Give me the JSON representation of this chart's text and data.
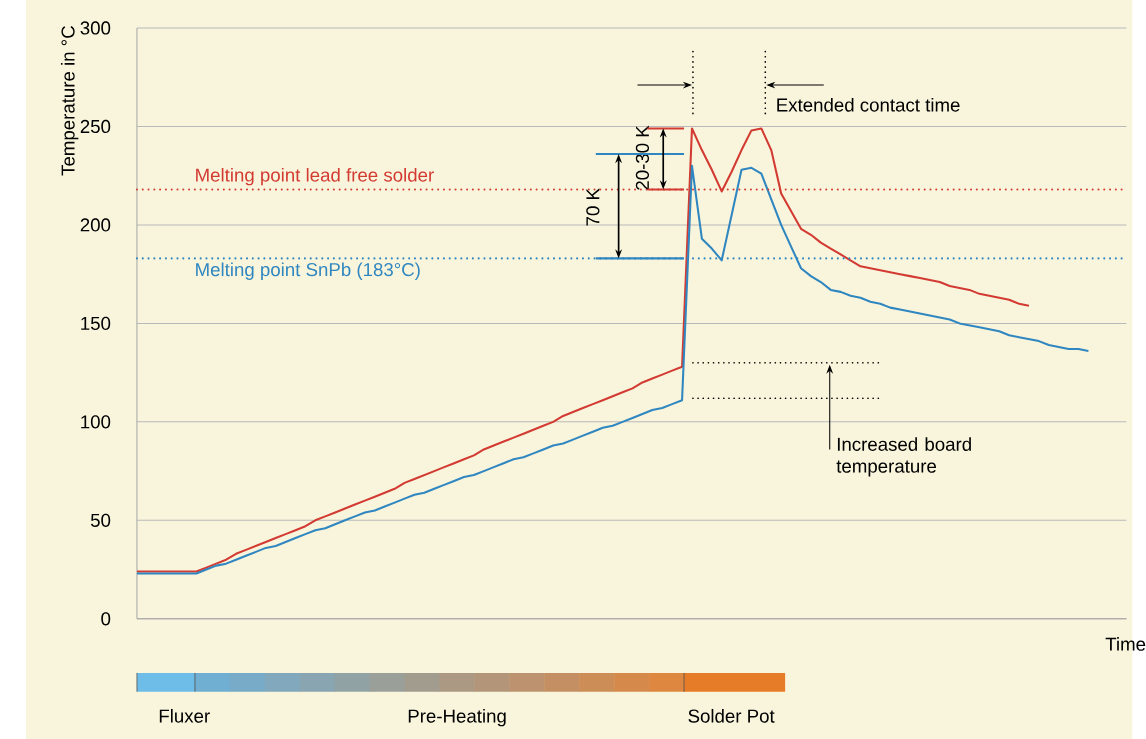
{
  "chart_data": {
    "type": "line",
    "xlabel": "Time",
    "ylabel": "Temperature in °C",
    "categories": [
      null,
      null,
      null,
      null,
      null,
      null,
      null,
      null,
      null,
      null,
      null,
      null,
      null,
      null,
      null,
      null,
      null,
      null,
      null,
      null,
      null,
      null,
      null,
      null,
      null,
      null,
      null,
      null,
      null,
      null,
      null,
      null,
      null,
      null,
      null,
      null,
      null,
      null,
      null,
      null,
      null,
      null,
      null,
      null,
      null,
      null,
      null,
      null,
      null,
      null,
      null,
      null,
      null,
      null,
      null,
      null,
      null,
      null,
      null,
      null,
      null,
      null,
      null,
      null,
      null,
      null,
      null,
      null,
      null,
      null,
      null,
      null,
      null,
      null,
      null,
      null,
      null,
      null,
      null,
      null,
      null,
      null,
      null,
      null,
      null,
      null,
      null,
      null,
      null,
      null,
      null,
      null,
      null,
      null,
      null,
      null,
      null
    ],
    "ylim": [
      0,
      300
    ],
    "yticks": [
      0,
      50,
      100,
      150,
      200,
      250,
      300
    ],
    "grid": "y",
    "line_style": "solid",
    "series": [
      {
        "color": "#d33a32",
        "values": [
          24,
          24,
          24,
          24,
          24,
          24,
          24,
          26,
          28,
          30,
          33,
          35,
          37,
          39,
          41,
          43,
          45,
          47,
          50,
          52,
          54,
          56,
          58,
          60,
          62,
          64,
          66,
          69,
          71,
          73,
          75,
          77,
          79,
          81,
          83,
          86,
          88,
          90,
          92,
          94,
          96,
          98,
          100,
          103,
          105,
          107,
          109,
          111,
          113,
          115,
          117,
          120,
          122,
          124,
          126,
          128,
          249,
          238,
          228,
          217,
          227,
          238,
          248,
          249,
          238,
          216,
          207,
          198,
          195,
          191,
          188,
          185,
          182,
          179,
          178,
          177,
          176,
          175,
          174,
          173,
          172,
          171,
          169,
          168,
          167,
          165,
          164,
          163,
          162,
          160,
          159,
          null,
          null,
          null,
          null,
          null,
          null
        ]
      },
      {
        "color": "#2f86c0",
        "values": [
          23,
          23,
          23,
          23,
          23,
          23,
          23,
          25,
          27,
          28,
          30,
          32,
          34,
          36,
          37,
          39,
          41,
          43,
          45,
          46,
          48,
          50,
          52,
          54,
          55,
          57,
          59,
          61,
          63,
          64,
          66,
          68,
          70,
          72,
          73,
          75,
          77,
          79,
          81,
          82,
          84,
          86,
          88,
          89,
          91,
          93,
          95,
          97,
          98,
          100,
          102,
          104,
          106,
          107,
          109,
          111,
          230,
          193,
          188,
          182,
          205,
          228,
          229,
          226,
          213,
          200,
          189,
          178,
          174,
          171,
          167,
          166,
          164,
          163,
          161,
          160,
          158,
          157,
          156,
          155,
          154,
          153,
          152,
          150,
          149,
          148,
          147,
          146,
          144,
          143,
          142,
          141,
          139,
          138,
          137,
          137,
          136
        ]
      }
    ],
    "ref_lines": [
      {
        "axis": "y",
        "value": 218,
        "label": "Melting point lead free solder",
        "color": "#d33a32",
        "line_style": "dotted"
      },
      {
        "axis": "y",
        "value": 183,
        "label": "Melting point SnPb (183°C)",
        "color": "#2f86c0",
        "line_style": "dotted"
      }
    ],
    "annotations": [
      "70 K",
      "20-30 K",
      "Extended contact time",
      "Increased board temperature",
      "Fluxer",
      "Pre-Heating",
      "Solder Pot"
    ]
  }
}
